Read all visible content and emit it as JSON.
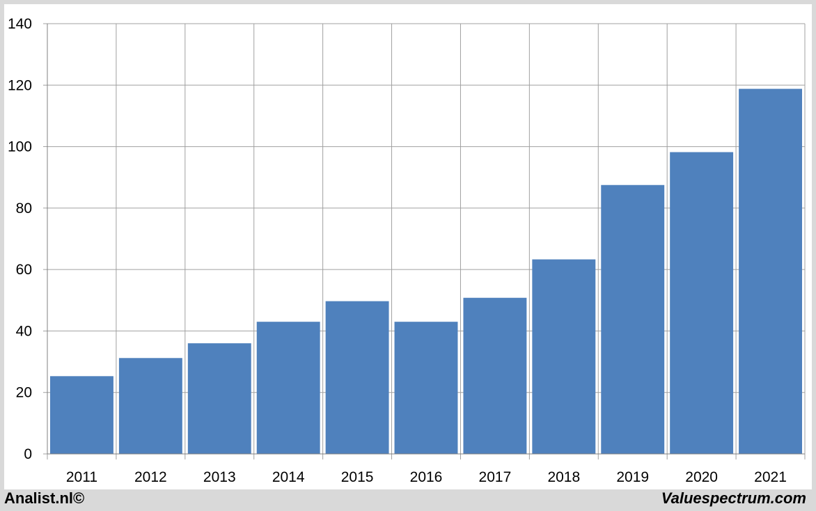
{
  "footer": {
    "left_text": "Analist.nl©",
    "right_text": "Valuespectrum.com"
  },
  "colors": {
    "bar": "#4f81bd",
    "grid": "#a0a0a0",
    "background": "#ffffff",
    "frame": "#d9d9d9"
  },
  "chart_data": {
    "type": "bar",
    "title": "",
    "xlabel": "",
    "ylabel": "",
    "categories": [
      "2011",
      "2012",
      "2013",
      "2014",
      "2015",
      "2016",
      "2017",
      "2018",
      "2019",
      "2020",
      "2021"
    ],
    "values": [
      25.3,
      31.2,
      36.0,
      43.0,
      49.7,
      43.0,
      50.8,
      63.3,
      87.5,
      98.2,
      118.8
    ],
    "ylim": [
      0,
      140
    ],
    "yticks": [
      0,
      20,
      40,
      60,
      80,
      100,
      120,
      140
    ],
    "grid": true,
    "legend": "none"
  }
}
